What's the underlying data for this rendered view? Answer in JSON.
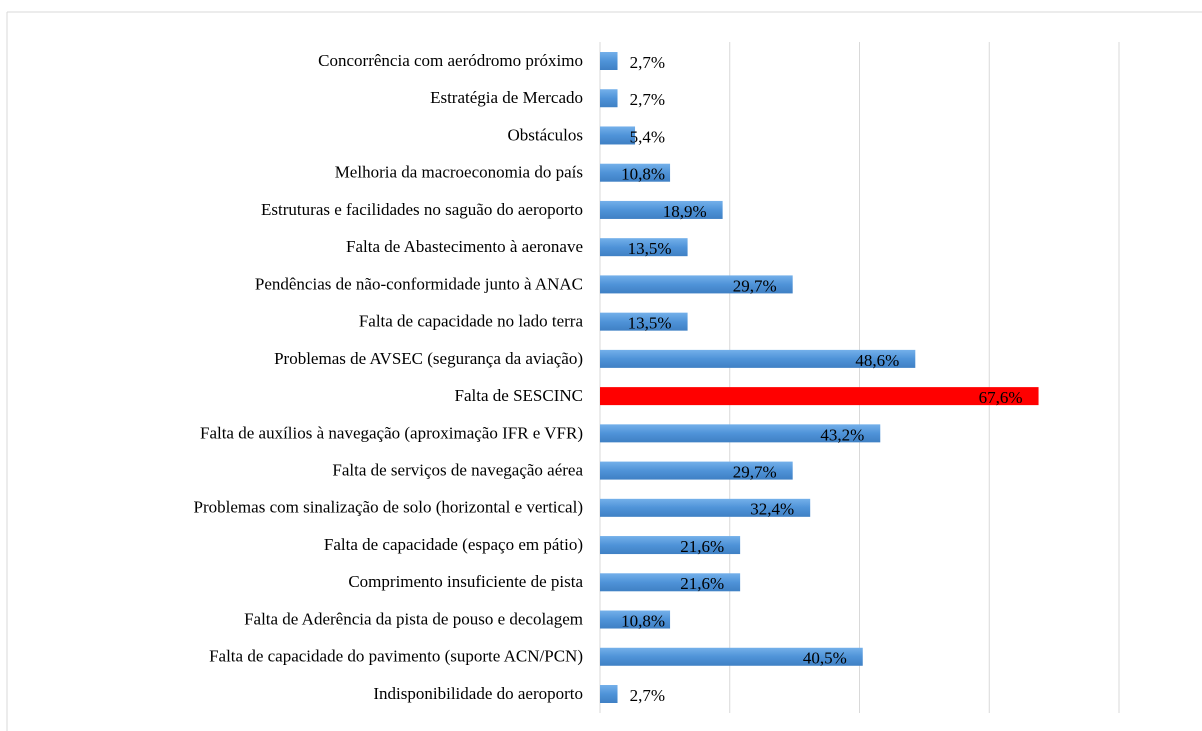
{
  "chart_data": {
    "type": "barh",
    "categories": [
      "Concorrência com aeródromo próximo",
      "Estratégia de Mercado",
      "Obstáculos",
      "Melhoria da macroeconomia do país",
      "Estruturas e facilidades no saguão do aeroporto",
      "Falta de Abastecimento à aeronave",
      "Pendências de não-conformidade junto à ANAC",
      "Falta de capacidade no lado terra",
      "Problemas de AVSEC (segurança da aviação)",
      "Falta de SESCINC",
      "Falta de auxílios à navegação (aproximação IFR e VFR)",
      "Falta de serviços de navegação aérea",
      "Problemas com sinalização de solo (horizontal e vertical)",
      "Falta de capacidade (espaço em pátio)",
      "Comprimento insuficiente de pista",
      "Falta de Aderência da pista de pouso e decolagem",
      "Falta de capacidade do pavimento (suporte ACN/PCN)",
      "Indisponibilidade do aeroporto"
    ],
    "values": [
      2.7,
      2.7,
      5.4,
      10.8,
      18.9,
      13.5,
      29.7,
      13.5,
      48.6,
      67.6,
      43.2,
      29.7,
      32.4,
      21.6,
      21.6,
      10.8,
      40.5,
      2.7
    ],
    "value_labels": [
      "2,7%",
      "2,7%",
      "5,4%",
      "10,8%",
      "18,9%",
      "13,5%",
      "29,7%",
      "13,5%",
      "48,6%",
      "67,6%",
      "43,2%",
      "29,7%",
      "32,4%",
      "21,6%",
      "21,6%",
      "10,8%",
      "40,5%",
      "2,7%"
    ],
    "colors": [
      "#4f93d8",
      "#4f93d8",
      "#4f93d8",
      "#4f93d8",
      "#4f93d8",
      "#4f93d8",
      "#4f93d8",
      "#4f93d8",
      "#4f93d8",
      "#ff0000",
      "#4f93d8",
      "#4f93d8",
      "#4f93d8",
      "#4f93d8",
      "#4f93d8",
      "#4f93d8",
      "#4f93d8",
      "#4f93d8"
    ],
    "xlim": [
      0,
      80
    ],
    "xticks": [
      0,
      20,
      40,
      60,
      80
    ],
    "grid": true
  }
}
